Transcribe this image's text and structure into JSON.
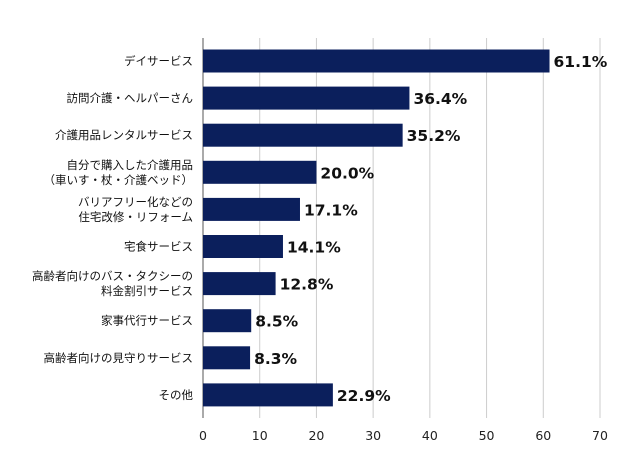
{
  "chart_data": {
    "type": "bar",
    "orientation": "horizontal",
    "title": "",
    "xlabel": "",
    "ylabel": "",
    "xlim": [
      0,
      70
    ],
    "x_ticks": [
      0,
      10,
      20,
      30,
      40,
      50,
      60,
      70
    ],
    "grid": "vertical",
    "categories": [
      [
        "デイサービス"
      ],
      [
        "訪問介護・ヘルパーさん"
      ],
      [
        "介護用品レンタルサービス"
      ],
      [
        "自分で購入した介護用品",
        "（車いす・杖・介護ベッド）"
      ],
      [
        "バリアフリー化などの",
        "住宅改修・リフォーム"
      ],
      [
        "宅食サービス"
      ],
      [
        "高齢者向けのバス・タクシーの",
        "料金割引サービス"
      ],
      [
        "家事代行サービス"
      ],
      [
        "高齢者向けの見守りサービス"
      ],
      [
        "その他"
      ]
    ],
    "values": [
      61.1,
      36.4,
      35.2,
      20.0,
      17.1,
      14.1,
      12.8,
      8.5,
      8.3,
      22.9
    ],
    "value_labels": [
      "61.1%",
      "36.4%",
      "35.2%",
      "20.0%",
      "17.1%",
      "14.1%",
      "12.8%",
      "8.5%",
      "8.3%",
      "22.9%"
    ],
    "bar_color": "#0b1f5c"
  }
}
